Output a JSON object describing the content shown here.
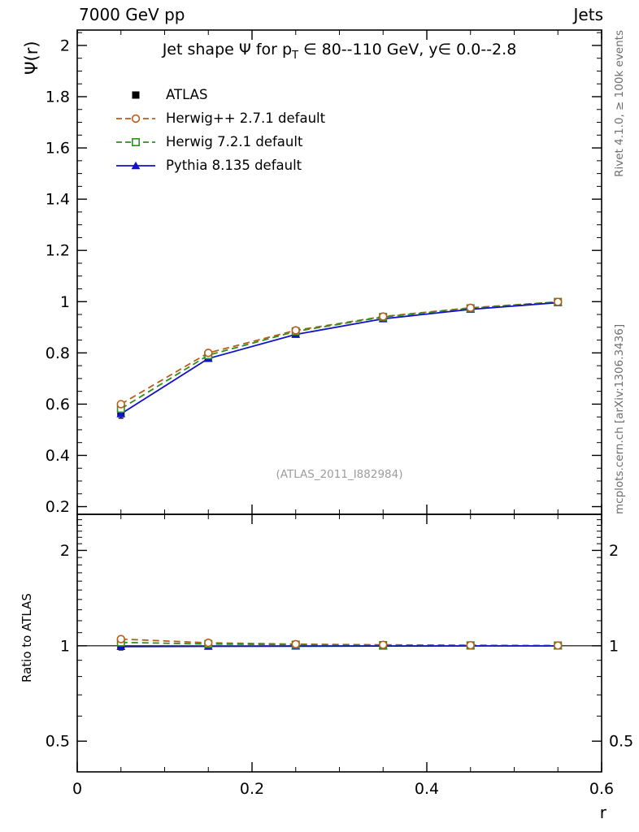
{
  "header": {
    "left": "7000 GeV pp",
    "right": "Jets"
  },
  "title": {
    "pre": "Jet shape Ψ for p",
    "sub": "T",
    "post": " ∈ 80--110 GeV, y∈ 0.0--2.8"
  },
  "watermark": "(ATLAS_2011_I882984)",
  "axes": {
    "ylabel_top": "Ψ(r)",
    "ylabel_bottom": "Ratio to ATLAS",
    "xlabel": "r"
  },
  "side_labels": {
    "rivet": "Rivet 4.1.0, ≥ 100k events",
    "mcplots": "mcplots.cern.ch [arXiv:1306.3436]"
  },
  "chart_data": {
    "type": "line",
    "x": [
      0.05,
      0.15,
      0.25,
      0.35,
      0.45,
      0.55
    ],
    "xlim": [
      0,
      0.6
    ],
    "xticks": [
      "0",
      "0.2",
      "0.4",
      "0.6"
    ],
    "xlabel": "r",
    "top_panel": {
      "ylabel": "Ψ(r)",
      "ylim": [
        0.17,
        2.06
      ],
      "yticks": [
        "0.2",
        "0.4",
        "0.6",
        "0.8",
        "1",
        "1.2",
        "1.4",
        "1.6",
        "1.8",
        "2"
      ],
      "series": [
        {
          "name": "ATLAS",
          "marker": "filled-square",
          "color": "#000000",
          "line": "none",
          "values": [
            0.565,
            0.78,
            0.875,
            0.935,
            0.971,
            0.997
          ],
          "errors": [
            0.02,
            0.012,
            0.009,
            0.006,
            0.004,
            0.003
          ],
          "ratio": [
            1,
            1,
            1,
            1,
            1,
            1
          ],
          "ratio_errors": [
            0.03,
            0.015,
            0.01,
            0.007,
            0.005,
            0.004
          ]
        },
        {
          "name": "Herwig++ 2.7.1 default",
          "marker": "open-circle",
          "color": "#b85c18",
          "line": "dashed",
          "values": [
            0.6,
            0.8,
            0.888,
            0.942,
            0.976,
            0.999
          ],
          "ratio": [
            1.05,
            1.022,
            1.012,
            1.007,
            1.004,
            1.002
          ]
        },
        {
          "name": "Herwig 7.2.1 default",
          "marker": "open-square",
          "color": "#2f8f1e",
          "line": "dashed",
          "values": [
            0.582,
            0.791,
            0.884,
            0.94,
            0.974,
            0.999
          ],
          "ratio": [
            1.025,
            1.013,
            1.008,
            1.005,
            1.003,
            1.002
          ]
        },
        {
          "name": "Pythia 8.135 default",
          "marker": "filled-triangle",
          "color": "#1111cc",
          "line": "solid",
          "values": [
            0.562,
            0.778,
            0.872,
            0.933,
            0.97,
            0.996
          ],
          "ratio": [
            0.994,
            0.996,
            0.997,
            0.998,
            0.999,
            0.999
          ]
        }
      ]
    },
    "ratio_panel": {
      "ylabel": "Ratio to ATLAS",
      "scale": "log",
      "ylim": [
        0.4,
        2.6
      ],
      "yticks": [
        "0.5",
        "1",
        "2"
      ],
      "reference": 1
    }
  }
}
